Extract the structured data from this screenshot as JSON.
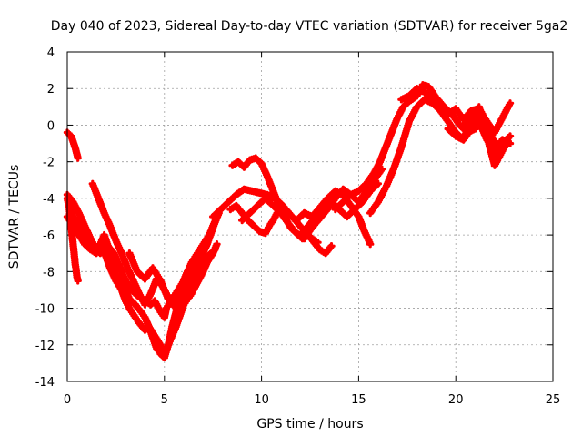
{
  "chart_data": {
    "type": "scatter",
    "title": "Day 040 of 2023, Sidereal Day-to-day VTEC variation (SDTVAR) for receiver 5ga2",
    "xlabel": "GPS time / hours",
    "ylabel": "SDTVAR / TECUs",
    "xlim": [
      0,
      25
    ],
    "ylim": [
      -14,
      4
    ],
    "xticks": [
      "0",
      "5",
      "10",
      "15",
      "20",
      "25"
    ],
    "yticks": [
      "4",
      "2",
      "0",
      "-2",
      "-4",
      "-6",
      "-8",
      "-10",
      "-12",
      "-14"
    ],
    "grid": true,
    "marker": "+",
    "color": "#ff0000",
    "series": [
      {
        "x": [
          0.0,
          0.2,
          0.4,
          0.55
        ],
        "y": [
          -0.4,
          -0.6,
          -1.2,
          -1.8
        ]
      },
      {
        "x": [
          0.0,
          0.1,
          0.2,
          0.3,
          0.4,
          0.5,
          0.55
        ],
        "y": [
          -4.0,
          -4.5,
          -5.5,
          -6.5,
          -7.5,
          -8.3,
          -8.5
        ]
      },
      {
        "x": [
          0.0,
          0.3,
          0.6,
          0.9,
          1.2,
          1.5,
          1.7,
          1.9,
          2.1,
          2.3,
          2.5,
          2.7,
          3.0,
          3.2,
          3.5,
          3.8,
          4.0,
          4.2,
          4.5,
          4.8,
          5.0,
          5.2,
          5.4,
          5.6,
          5.8,
          6.0,
          6.2,
          6.4,
          6.6,
          6.8,
          7.0,
          7.2,
          7.5,
          7.7
        ],
        "y": [
          -3.8,
          -4.2,
          -4.8,
          -5.5,
          -6.2,
          -6.8,
          -7.0,
          -6.6,
          -7.2,
          -7.5,
          -8.2,
          -8.5,
          -9.0,
          -9.5,
          -9.8,
          -10.2,
          -10.5,
          -11.0,
          -11.5,
          -12.0,
          -12.3,
          -12.0,
          -11.5,
          -11.0,
          -10.4,
          -9.8,
          -9.5,
          -9.2,
          -8.8,
          -8.4,
          -8.0,
          -7.5,
          -7.0,
          -6.5
        ]
      },
      {
        "x": [
          0.1,
          0.3,
          0.5,
          0.8,
          1.0,
          1.2,
          1.5,
          1.8,
          2.0,
          2.2,
          2.5,
          2.8,
          3.0,
          3.2,
          3.5,
          3.7,
          4.0,
          4.2,
          4.4,
          4.6,
          4.8,
          5.0,
          5.2,
          5.4,
          5.6,
          5.8,
          6.0,
          6.3,
          6.6,
          6.9,
          7.2,
          7.5,
          7.8
        ],
        "y": [
          -4.5,
          -5.0,
          -5.3,
          -5.8,
          -6.2,
          -6.5,
          -6.7,
          -6.8,
          -7.2,
          -7.8,
          -8.5,
          -9.0,
          -9.6,
          -10.0,
          -10.5,
          -10.8,
          -11.2,
          -11.0,
          -11.6,
          -12.2,
          -12.5,
          -12.7,
          -12.0,
          -11.0,
          -10.2,
          -9.6,
          -9.2,
          -8.6,
          -8.0,
          -7.2,
          -6.5,
          -5.6,
          -4.8
        ]
      },
      {
        "x": [
          0.0,
          0.3,
          0.6,
          0.9,
          1.2,
          1.5,
          1.7,
          1.9,
          2.1,
          2.4,
          2.6,
          2.8,
          3.0,
          3.3,
          3.6,
          4.0,
          4.3,
          4.5,
          4.8,
          5.0,
          5.1,
          5.4,
          5.7,
          6.0,
          6.3,
          6.6,
          6.9,
          7.2,
          7.5,
          7.8
        ],
        "y": [
          -5.0,
          -5.5,
          -6.0,
          -6.5,
          -6.8,
          -7.0,
          -6.5,
          -6.0,
          -6.6,
          -7.0,
          -7.5,
          -8.0,
          -8.5,
          -9.0,
          -9.3,
          -9.6,
          -9.8,
          -9.6,
          -10.2,
          -10.5,
          -10.0,
          -9.5,
          -9.0,
          -8.5,
          -8.0,
          -7.5,
          -7.0,
          -6.3,
          -5.5,
          -4.8
        ]
      },
      {
        "x": [
          1.3,
          1.6,
          1.9,
          2.2,
          2.5,
          2.8,
          3.1,
          3.4,
          3.7,
          4.0,
          4.3,
          4.6,
          4.9,
          5.2,
          5.5,
          5.8,
          6.1,
          6.4,
          6.7,
          7.0,
          7.3
        ],
        "y": [
          -3.2,
          -4.0,
          -4.8,
          -5.5,
          -6.3,
          -7.0,
          -7.8,
          -8.5,
          -9.2,
          -9.8,
          -9.2,
          -8.4,
          -8.8,
          -9.4,
          -9.8,
          -9.0,
          -8.2,
          -7.5,
          -7.0,
          -6.5,
          -6.0
        ]
      },
      {
        "x": [
          3.2,
          3.6,
          4.0,
          4.4,
          4.8,
          5.2,
          5.6,
          6.0,
          6.4,
          6.8,
          7.2,
          7.6
        ],
        "y": [
          -7.0,
          -8.0,
          -8.4,
          -7.8,
          -8.5,
          -9.5,
          -10.0,
          -9.5,
          -8.6,
          -7.8,
          -7.2,
          -6.8
        ]
      },
      {
        "x": [
          7.5,
          7.9,
          8.3,
          8.7,
          9.1,
          9.5,
          9.9,
          10.3,
          10.7,
          11.1,
          11.5,
          11.9,
          12.3,
          12.6,
          12.9
        ],
        "y": [
          -5.0,
          -4.6,
          -4.2,
          -3.8,
          -3.5,
          -3.6,
          -3.7,
          -3.8,
          -4.0,
          -4.4,
          -4.9,
          -5.4,
          -5.9,
          -6.2,
          -6.4
        ]
      },
      {
        "x": [
          8.4,
          8.7,
          9.0,
          9.3,
          9.6,
          9.9,
          10.2,
          10.4,
          10.6,
          10.8,
          11.0,
          11.2
        ],
        "y": [
          -4.6,
          -4.4,
          -4.8,
          -5.2,
          -5.5,
          -5.8,
          -5.9,
          -5.5,
          -5.2,
          -4.8,
          -4.6,
          -4.8
        ]
      },
      {
        "x": [
          8.5,
          8.8,
          9.1,
          9.4,
          9.7,
          10.0,
          10.3,
          10.6,
          10.9,
          11.2,
          11.5,
          11.8,
          12.1,
          12.4,
          12.7,
          13.0,
          13.3,
          13.6
        ],
        "y": [
          -2.2,
          -2.0,
          -2.3,
          -1.9,
          -1.8,
          -2.1,
          -2.8,
          -3.6,
          -4.4,
          -5.0,
          -5.6,
          -5.9,
          -6.2,
          -6.0,
          -6.4,
          -6.8,
          -7.0,
          -6.6
        ]
      },
      {
        "x": [
          9.0,
          9.4,
          9.8,
          10.2,
          10.6,
          11.0,
          11.4,
          11.8,
          12.2,
          12.6,
          13.0,
          13.4,
          13.8,
          14.2,
          14.6,
          15.0,
          15.4,
          15.8,
          16.2
        ],
        "y": [
          -5.2,
          -4.8,
          -4.4,
          -4.0,
          -4.4,
          -4.8,
          -5.4,
          -5.9,
          -6.2,
          -5.6,
          -5.1,
          -4.6,
          -4.0,
          -3.5,
          -3.8,
          -4.2,
          -3.6,
          -3.0,
          -2.4
        ]
      },
      {
        "x": [
          11.8,
          12.2,
          12.6,
          13.0,
          13.4,
          13.8,
          14.2,
          14.6,
          15.0,
          15.3,
          15.6
        ],
        "y": [
          -5.2,
          -4.8,
          -5.0,
          -4.5,
          -4.0,
          -3.6,
          -3.8,
          -4.4,
          -5.0,
          -5.8,
          -6.5
        ]
      },
      {
        "x": [
          12.0,
          12.4,
          12.8,
          13.2,
          13.6,
          14.0,
          14.4,
          14.8,
          15.2,
          15.6,
          16.0
        ],
        "y": [
          -6.0,
          -5.5,
          -5.0,
          -4.5,
          -4.2,
          -4.6,
          -5.0,
          -4.6,
          -4.2,
          -3.6,
          -3.2
        ]
      },
      {
        "x": [
          13.8,
          14.2,
          14.6,
          15.0,
          15.4,
          15.8,
          16.1,
          16.4,
          16.7,
          17.0,
          17.3,
          17.6,
          18.0,
          18.3,
          18.6,
          19.0,
          19.4,
          19.8,
          20.2,
          20.6,
          21.0,
          21.4,
          21.8,
          22.2,
          22.6
        ],
        "y": [
          -4.6,
          -4.2,
          -3.8,
          -3.6,
          -3.2,
          -2.6,
          -2.0,
          -1.2,
          -0.4,
          0.4,
          1.0,
          1.3,
          1.6,
          2.2,
          2.1,
          1.5,
          1.0,
          0.6,
          0.0,
          -0.4,
          -0.2,
          0.4,
          -0.6,
          -1.2,
          -0.8
        ]
      },
      {
        "x": [
          15.6,
          16.0,
          16.4,
          16.8,
          17.2,
          17.6,
          18.0,
          18.4,
          18.8,
          19.2,
          19.6,
          20.0,
          20.4,
          20.8,
          21.2,
          21.6,
          22.0,
          22.4,
          22.8
        ],
        "y": [
          -4.8,
          -4.2,
          -3.4,
          -2.4,
          -1.2,
          0.2,
          1.0,
          1.4,
          1.2,
          0.8,
          0.2,
          -0.4,
          -0.8,
          -0.2,
          0.6,
          -0.5,
          -1.6,
          -1.0,
          -0.6
        ]
      },
      {
        "x": [
          17.2,
          17.6,
          18.0,
          18.4,
          18.8,
          19.2,
          19.6,
          20.0,
          20.4,
          20.8,
          21.2,
          21.6,
          22.0,
          22.4,
          22.8
        ],
        "y": [
          1.4,
          1.6,
          2.0,
          1.8,
          1.4,
          1.0,
          0.6,
          0.9,
          0.3,
          0.8,
          0.9,
          0.2,
          -0.4,
          0.4,
          1.2
        ]
      },
      {
        "x": [
          19.6,
          20.0,
          20.4,
          20.8,
          21.2,
          21.6,
          22.0,
          22.4,
          22.7
        ],
        "y": [
          -0.2,
          -0.6,
          -0.8,
          0.4,
          1.0,
          -0.6,
          -2.2,
          -1.4,
          -0.9
        ]
      },
      {
        "x": [
          20.4,
          20.8,
          21.2,
          21.6,
          22.0,
          22.4,
          22.8
        ],
        "y": [
          0.0,
          0.6,
          0.2,
          -0.8,
          -1.4,
          -0.8,
          -1.0
        ]
      }
    ]
  }
}
